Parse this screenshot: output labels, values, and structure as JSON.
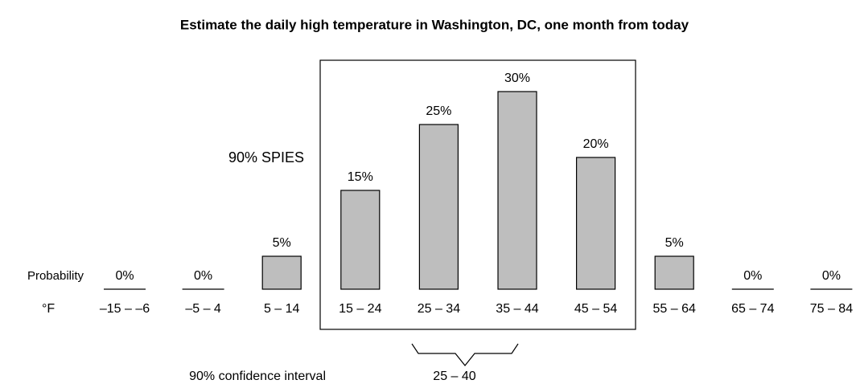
{
  "chart_data": {
    "type": "bar",
    "title": "Estimate the daily high temperature in Washington, DC, one month from today",
    "row_labels": {
      "probability": "Probability",
      "unit": "°F"
    },
    "spies_label": "90% SPIES",
    "confidence_interval": {
      "label": "90% confidence interval",
      "range": "25 – 40"
    },
    "categories": [
      "–15 – –6",
      "–5 – 4",
      "5 – 14",
      "15 – 24",
      "25 – 34",
      "35 – 44",
      "45 – 54",
      "55 – 64",
      "65 – 74",
      "75 – 84"
    ],
    "values": [
      0,
      0,
      5,
      15,
      25,
      30,
      20,
      5,
      0,
      0
    ],
    "value_labels": [
      "0%",
      "0%",
      "5%",
      "15%",
      "25%",
      "30%",
      "20%",
      "5%",
      "0%",
      "0%"
    ],
    "color": "#bebebe"
  }
}
